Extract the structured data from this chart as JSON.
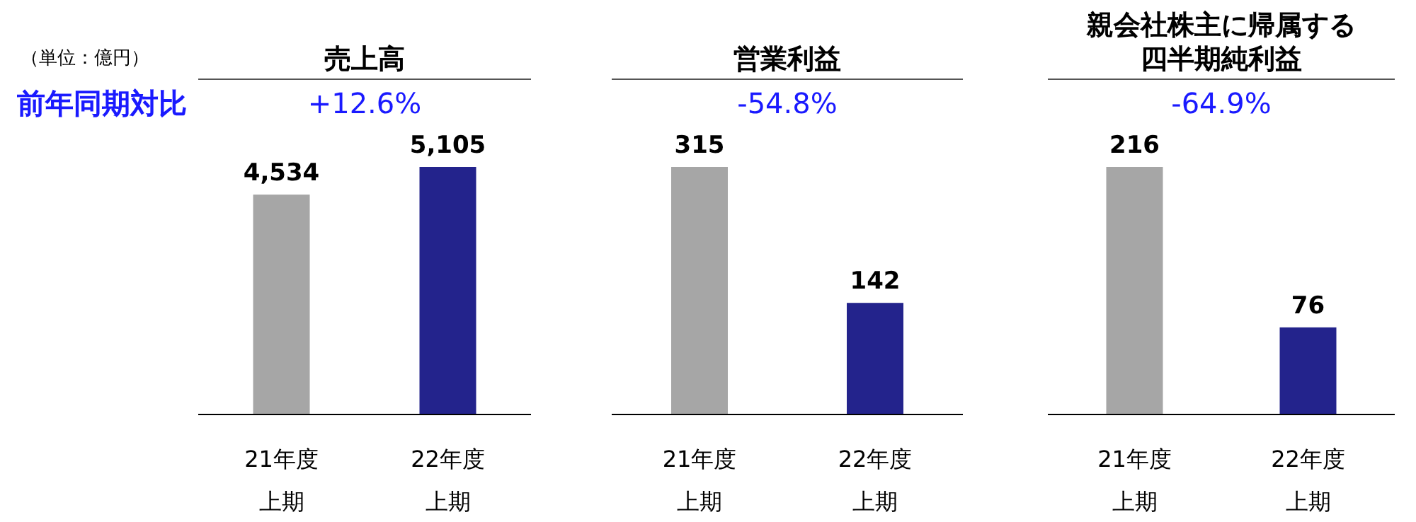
{
  "chart_data": [
    {
      "type": "bar",
      "title": "売上高",
      "subtitle": "+12.6%",
      "categories": [
        "21年度上期",
        "22年度上期"
      ],
      "values": [
        4534,
        5105
      ],
      "value_labels": [
        "4,534",
        "5,105"
      ],
      "colors": [
        "#a6a6a6",
        "#23238c"
      ],
      "annotations": [
        "（単位：億円）",
        "前年同期対比"
      ]
    },
    {
      "type": "bar",
      "title": "営業利益",
      "subtitle": "-54.8%",
      "categories": [
        "21年度上期",
        "22年度上期"
      ],
      "values": [
        315,
        142
      ],
      "value_labels": [
        "315",
        "142"
      ],
      "colors": [
        "#a6a6a6",
        "#23238c"
      ]
    },
    {
      "type": "bar",
      "title": "親会社株主に帰属する四半期純利益",
      "subtitle": "-64.9%",
      "categories": [
        "21年度上期",
        "22年度上期"
      ],
      "values": [
        216,
        76
      ],
      "value_labels": [
        "216",
        "76"
      ],
      "colors": [
        "#a6a6a6",
        "#23238c"
      ]
    }
  ]
}
